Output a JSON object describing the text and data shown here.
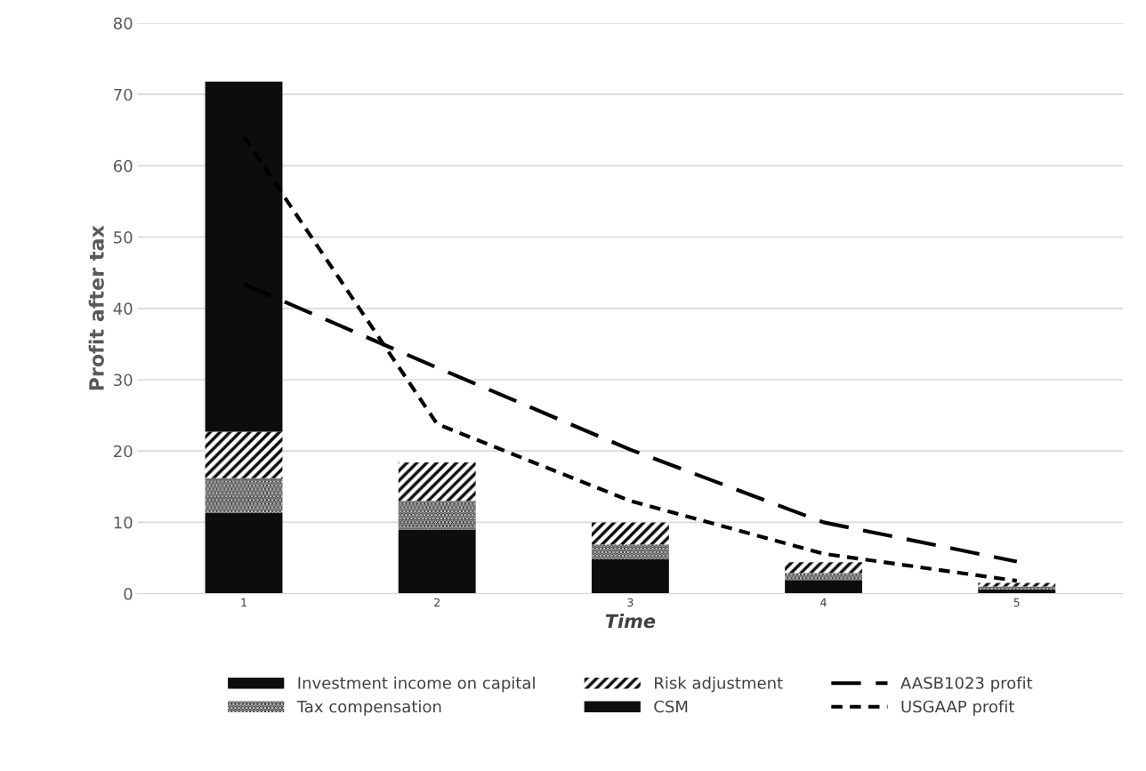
{
  "chart_data": {
    "type": "bar",
    "stacked": true,
    "xlabel": "Time",
    "ylabel": "Profit after tax",
    "categories": [
      "1",
      "2",
      "3",
      "4",
      "5"
    ],
    "series": [
      {
        "name": "Investment income on capital",
        "color": "#0d0d0d",
        "values": [
          11.3,
          9.0,
          4.8,
          1.9,
          0.6
        ]
      },
      {
        "name": "Tax compensation",
        "color": "#0d0d0d",
        "values": [
          4.9,
          4.0,
          2.1,
          1.0,
          0.4
        ]
      },
      {
        "name": "Risk adjustment",
        "color": "#0d0d0d",
        "values": [
          6.5,
          5.4,
          3.1,
          1.5,
          0.5
        ]
      },
      {
        "name": "CSM",
        "color": "#0d0d0d",
        "values": [
          49.1,
          0,
          0,
          0,
          0
        ]
      },
      {
        "name": "AASB1023 profit",
        "type": "line",
        "line_style": "dashed",
        "color": "#000000",
        "values": [
          43.4,
          31.7,
          20.2,
          10.0,
          4.5
        ]
      },
      {
        "name": "USGAAP profit",
        "type": "line",
        "line_style": "dashed",
        "color": "#000000",
        "values": [
          64.1,
          23.8,
          13.0,
          5.6,
          1.8
        ]
      }
    ],
    "ylim": [
      0,
      80
    ],
    "yticks": [
      0,
      10,
      20,
      30,
      40,
      50,
      60,
      70,
      80
    ],
    "grid": "y",
    "legend": "bottom"
  }
}
